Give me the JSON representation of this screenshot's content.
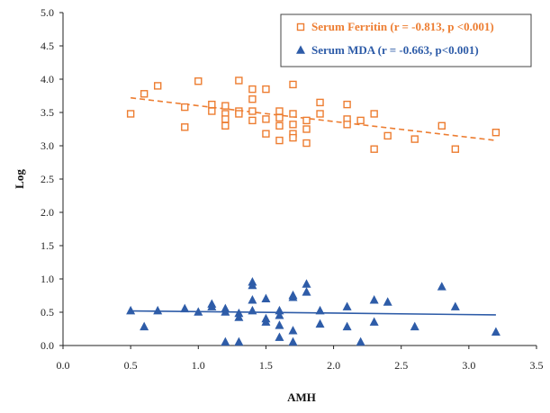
{
  "chart_data": {
    "type": "scatter",
    "xlabel": "AMH",
    "ylabel": "Log",
    "xlim": [
      0.0,
      3.5
    ],
    "ylim": [
      0.0,
      5.0
    ],
    "x_ticks": [
      "0.0",
      "0.5",
      "1.0",
      "1.5",
      "2.0",
      "2.5",
      "3.0",
      "3.5"
    ],
    "y_ticks": [
      "0.0",
      "0.5",
      "1.0",
      "1.5",
      "2.0",
      "2.5",
      "3.0",
      "3.5",
      "4.0",
      "4.5",
      "5.0"
    ],
    "grid": false,
    "legend_position": "top-right",
    "series": [
      {
        "name": "Serum Ferritin",
        "legend_label": "Serum Ferritin  (r = -0.813, p <0.001)",
        "marker": "square-open",
        "color": "#ED7D31",
        "trendline": {
          "style": "dashed",
          "x": [
            0.5,
            3.2
          ],
          "y": [
            3.72,
            3.08
          ]
        },
        "points": [
          [
            0.5,
            3.48
          ],
          [
            0.6,
            3.78
          ],
          [
            0.7,
            3.9
          ],
          [
            0.9,
            3.28
          ],
          [
            0.9,
            3.58
          ],
          [
            1.0,
            3.97
          ],
          [
            1.1,
            3.62
          ],
          [
            1.1,
            3.52
          ],
          [
            1.2,
            3.6
          ],
          [
            1.2,
            3.48
          ],
          [
            1.2,
            3.4
          ],
          [
            1.2,
            3.3
          ],
          [
            1.3,
            3.98
          ],
          [
            1.3,
            3.52
          ],
          [
            1.3,
            3.48
          ],
          [
            1.4,
            3.85
          ],
          [
            1.4,
            3.7
          ],
          [
            1.4,
            3.52
          ],
          [
            1.4,
            3.38
          ],
          [
            1.5,
            3.85
          ],
          [
            1.5,
            3.4
          ],
          [
            1.5,
            3.18
          ],
          [
            1.6,
            3.52
          ],
          [
            1.6,
            3.42
          ],
          [
            1.6,
            3.3
          ],
          [
            1.6,
            3.08
          ],
          [
            1.7,
            3.92
          ],
          [
            1.7,
            3.48
          ],
          [
            1.7,
            3.32
          ],
          [
            1.7,
            3.18
          ],
          [
            1.7,
            3.12
          ],
          [
            1.8,
            3.38
          ],
          [
            1.8,
            3.25
          ],
          [
            1.8,
            3.04
          ],
          [
            1.9,
            3.65
          ],
          [
            1.9,
            3.48
          ],
          [
            2.1,
            3.62
          ],
          [
            2.1,
            3.4
          ],
          [
            2.1,
            3.32
          ],
          [
            2.2,
            3.38
          ],
          [
            2.3,
            3.48
          ],
          [
            2.3,
            2.95
          ],
          [
            2.4,
            3.15
          ],
          [
            2.6,
            3.1
          ],
          [
            2.8,
            3.3
          ],
          [
            2.9,
            2.95
          ],
          [
            3.2,
            3.2
          ]
        ]
      },
      {
        "name": "Serum MDA",
        "legend_label": "Serum MDA (r = -0.663, p<0.001)",
        "marker": "triangle-filled",
        "color": "#2E5CA8",
        "trendline": {
          "style": "solid",
          "x": [
            0.5,
            3.2
          ],
          "y": [
            0.52,
            0.46
          ]
        },
        "points": [
          [
            0.5,
            0.52
          ],
          [
            0.6,
            0.28
          ],
          [
            0.7,
            0.52
          ],
          [
            0.9,
            0.55
          ],
          [
            1.0,
            0.5
          ],
          [
            1.1,
            0.62
          ],
          [
            1.1,
            0.58
          ],
          [
            1.2,
            0.55
          ],
          [
            1.2,
            0.5
          ],
          [
            1.2,
            0.05
          ],
          [
            1.3,
            0.48
          ],
          [
            1.3,
            0.42
          ],
          [
            1.3,
            0.05
          ],
          [
            1.4,
            0.95
          ],
          [
            1.4,
            0.9
          ],
          [
            1.4,
            0.68
          ],
          [
            1.4,
            0.52
          ],
          [
            1.5,
            0.7
          ],
          [
            1.5,
            0.4
          ],
          [
            1.5,
            0.35
          ],
          [
            1.6,
            0.52
          ],
          [
            1.6,
            0.45
          ],
          [
            1.6,
            0.3
          ],
          [
            1.6,
            0.12
          ],
          [
            1.7,
            0.75
          ],
          [
            1.7,
            0.72
          ],
          [
            1.7,
            0.22
          ],
          [
            1.7,
            0.05
          ],
          [
            1.8,
            0.92
          ],
          [
            1.8,
            0.8
          ],
          [
            1.9,
            0.52
          ],
          [
            1.9,
            0.32
          ],
          [
            2.1,
            0.58
          ],
          [
            2.1,
            0.28
          ],
          [
            2.2,
            0.05
          ],
          [
            2.3,
            0.68
          ],
          [
            2.3,
            0.35
          ],
          [
            2.4,
            0.65
          ],
          [
            2.6,
            0.28
          ],
          [
            2.8,
            0.88
          ],
          [
            2.9,
            0.58
          ],
          [
            3.2,
            0.2
          ]
        ]
      }
    ]
  }
}
